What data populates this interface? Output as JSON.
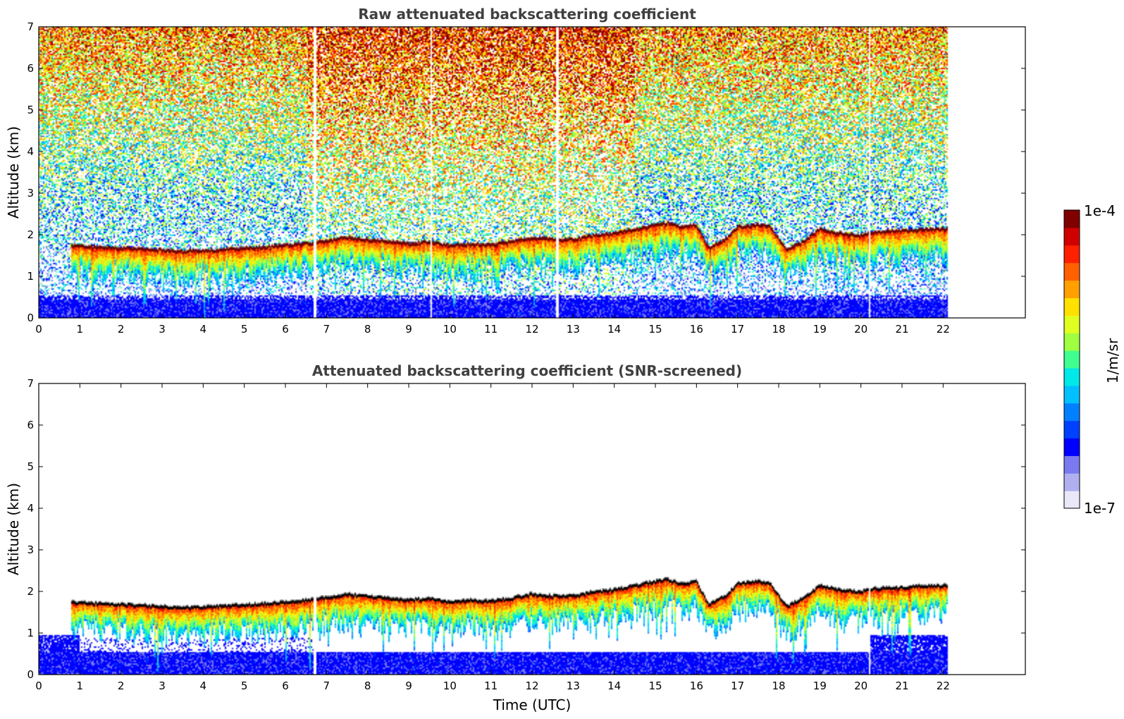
{
  "chart_data": [
    {
      "type": "heatmap",
      "title": "Raw attenuated backscattering coefficient",
      "xlabel": "",
      "ylabel": "Altitude (km)",
      "xlim": [
        0,
        24
      ],
      "ylim": [
        0,
        7
      ],
      "x_ticks": [
        0,
        1,
        2,
        3,
        4,
        5,
        6,
        7,
        8,
        9,
        10,
        11,
        12,
        13,
        14,
        15,
        16,
        17,
        18,
        19,
        20,
        21,
        22
      ],
      "y_ticks": [
        0,
        1,
        2,
        3,
        4,
        5,
        6,
        7
      ],
      "data_time_range": [
        0.8,
        22.1
      ],
      "noise_start_time": 0,
      "screened": false,
      "data_gaps_time": [
        6.72,
        9.55,
        12.62,
        20.22
      ]
    },
    {
      "type": "heatmap",
      "title": "Attenuated backscattering coefficient (SNR-screened)",
      "xlabel": "Time (UTC)",
      "ylabel": "Altitude (km)",
      "xlim": [
        0,
        24
      ],
      "ylim": [
        0,
        7
      ],
      "x_ticks": [
        0,
        1,
        2,
        3,
        4,
        5,
        6,
        7,
        8,
        9,
        10,
        11,
        12,
        13,
        14,
        15,
        16,
        17,
        18,
        19,
        20,
        21,
        22
      ],
      "y_ticks": [
        0,
        1,
        2,
        3,
        4,
        5,
        6,
        7
      ],
      "data_time_range": [
        0.8,
        22.1
      ],
      "noise_start_time": 0,
      "screened": true,
      "data_gaps_time": [
        6.72,
        20.22
      ]
    }
  ],
  "cloud_base_profile": {
    "time": [
      0.8,
      1.5,
      2.5,
      3.5,
      4.5,
      5.5,
      6.5,
      7.0,
      7.5,
      8.0,
      8.5,
      9.0,
      9.5,
      10.0,
      10.5,
      11.0,
      11.5,
      12.0,
      12.5,
      13.0,
      13.5,
      14.0,
      14.5,
      15.0,
      15.3,
      15.6,
      16.0,
      16.3,
      16.7,
      17.0,
      17.5,
      17.8,
      18.2,
      18.6,
      19.0,
      19.5,
      20.0,
      20.3,
      21.0,
      21.5,
      22.1
    ],
    "top_km": [
      1.75,
      1.72,
      1.68,
      1.62,
      1.66,
      1.72,
      1.8,
      1.87,
      1.95,
      1.9,
      1.85,
      1.8,
      1.85,
      1.75,
      1.8,
      1.78,
      1.85,
      1.95,
      1.9,
      1.9,
      2.0,
      2.05,
      2.15,
      2.25,
      2.3,
      2.2,
      2.25,
      1.7,
      1.9,
      2.2,
      2.25,
      2.2,
      1.65,
      1.85,
      2.15,
      2.05,
      2.0,
      2.08,
      2.1,
      2.15,
      2.15
    ]
  },
  "colorbar": {
    "min_label": "1e-7",
    "max_label": "1e-4",
    "label": "1/m/sr",
    "colormap": "jet",
    "colors": [
      "#e8e8f8",
      "#b0b0f0",
      "#7a7af0",
      "#0000ff",
      "#0040ff",
      "#0080ff",
      "#00c0ff",
      "#00e8e8",
      "#40ff90",
      "#a0ff40",
      "#e0ff20",
      "#ffe000",
      "#ffa000",
      "#ff6000",
      "#ff2000",
      "#d00000",
      "#800000"
    ]
  }
}
